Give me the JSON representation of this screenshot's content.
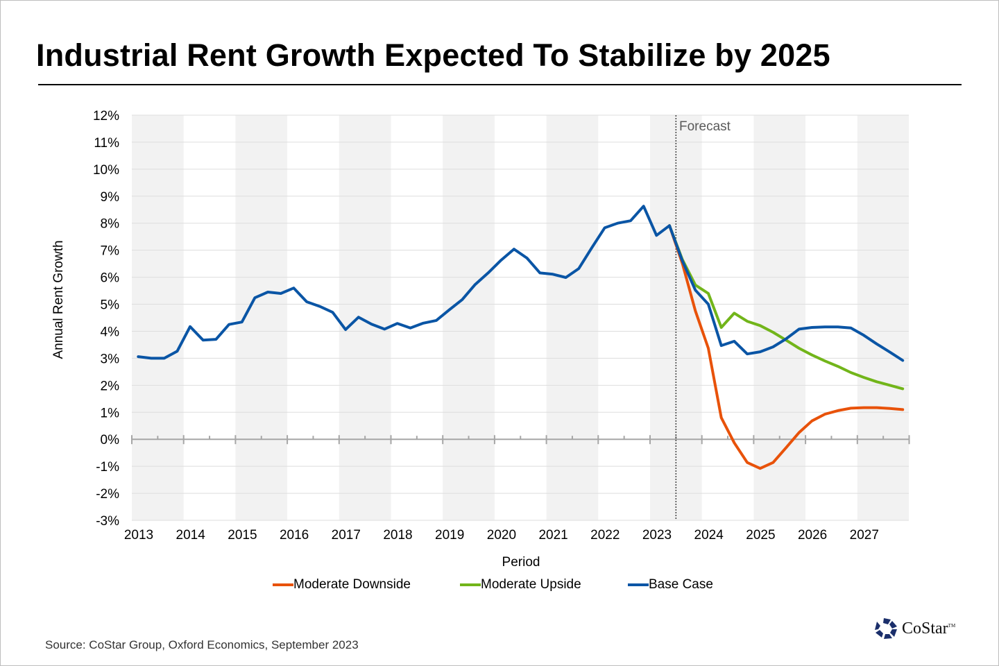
{
  "title": "Industrial Rent Growth Expected To Stabilize by 2025",
  "source": "Source: CoStar Group, Oxford Economics, September 2023",
  "logo": {
    "text": "CoStar",
    "mark": "TM"
  },
  "colors": {
    "downside": "#E8520A",
    "upside": "#72B51A",
    "base": "#0A55A5",
    "band": "#F2F2F2",
    "grid": "#DDDDDD",
    "axis": "#A6A6A6"
  },
  "chart_data": {
    "type": "line",
    "xlabel": "Period",
    "ylabel": "Annual Rent Growth",
    "ylim": [
      -3,
      12
    ],
    "yticks": [
      "12%",
      "11%",
      "10%",
      "9%",
      "8%",
      "7%",
      "6%",
      "5%",
      "4%",
      "3%",
      "2%",
      "1%",
      "0%",
      "-1%",
      "-2%",
      "-3%"
    ],
    "xticks": [
      "2013",
      "2014",
      "2015",
      "2016",
      "2017",
      "2018",
      "2019",
      "2020",
      "2021",
      "2022",
      "2023",
      "2024",
      "2025",
      "2026",
      "2027"
    ],
    "x_unit": "quarter",
    "x_start": "2013Q1",
    "grid": true,
    "alternating_year_shading": true,
    "forecast_label": "Forecast",
    "forecast_start": "2023Q3",
    "legend_position": "bottom",
    "series": [
      {
        "name": "Moderate Downside",
        "color": "#E8520A",
        "values": [
          null,
          null,
          null,
          null,
          null,
          null,
          null,
          null,
          null,
          null,
          null,
          null,
          null,
          null,
          null,
          null,
          null,
          null,
          null,
          null,
          null,
          null,
          null,
          null,
          null,
          null,
          null,
          null,
          null,
          null,
          null,
          null,
          null,
          null,
          null,
          null,
          null,
          null,
          null,
          null,
          null,
          7.91,
          6.5,
          4.75,
          3.37,
          0.8,
          -0.13,
          -0.86,
          -1.08,
          -0.86,
          -0.31,
          0.25,
          0.68,
          0.93,
          1.06,
          1.15,
          1.17,
          1.17,
          1.14,
          1.1
        ]
      },
      {
        "name": "Moderate Upside",
        "color": "#72B51A",
        "values": [
          null,
          null,
          null,
          null,
          null,
          null,
          null,
          null,
          null,
          null,
          null,
          null,
          null,
          null,
          null,
          null,
          null,
          null,
          null,
          null,
          null,
          null,
          null,
          null,
          null,
          null,
          null,
          null,
          null,
          null,
          null,
          null,
          null,
          null,
          null,
          null,
          null,
          null,
          null,
          null,
          null,
          7.91,
          6.65,
          5.71,
          5.4,
          4.14,
          4.67,
          4.37,
          4.21,
          3.96,
          3.67,
          3.37,
          3.12,
          2.9,
          2.7,
          2.47,
          2.29,
          2.13,
          2.0,
          1.87
        ]
      },
      {
        "name": "Base Case",
        "color": "#0A55A5",
        "values": [
          3.06,
          3.0,
          3.0,
          3.26,
          4.17,
          3.67,
          3.7,
          4.25,
          4.34,
          5.24,
          5.45,
          5.4,
          5.6,
          5.09,
          4.92,
          4.7,
          4.06,
          4.52,
          4.26,
          4.08,
          4.29,
          4.12,
          4.3,
          4.4,
          4.79,
          5.17,
          5.73,
          6.16,
          6.63,
          7.04,
          6.71,
          6.16,
          6.11,
          5.99,
          6.32,
          7.09,
          7.83,
          8.0,
          8.09,
          8.63,
          7.55,
          7.91,
          6.6,
          5.52,
          5.0,
          3.47,
          3.63,
          3.16,
          3.24,
          3.42,
          3.72,
          4.08,
          4.14,
          4.16,
          4.16,
          4.12,
          3.85,
          3.53,
          3.23,
          2.92
        ]
      }
    ]
  }
}
